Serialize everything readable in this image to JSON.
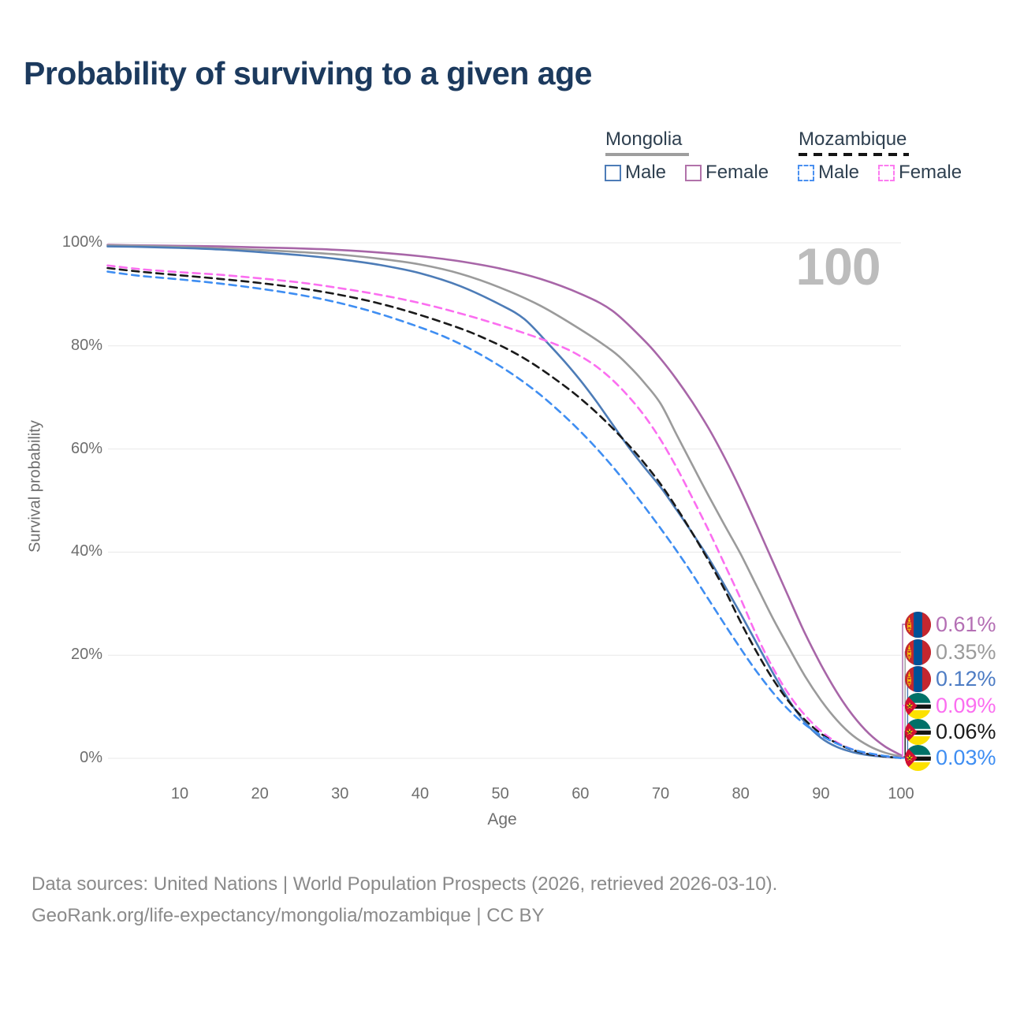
{
  "title": "Probability of surviving to a given age",
  "watermark": "100",
  "legend": {
    "mongolia": {
      "label": "Mongolia",
      "male": "Male",
      "female": "Female"
    },
    "mozambique": {
      "label": "Mozambique",
      "male": "Male",
      "female": "Female"
    }
  },
  "axes": {
    "y_label": "Survival probability",
    "x_label": "Age",
    "y_ticks": [
      "0%",
      "20%",
      "40%",
      "60%",
      "80%",
      "100%"
    ],
    "x_ticks": [
      10,
      20,
      30,
      40,
      50,
      60,
      70,
      80,
      90,
      100
    ]
  },
  "footer": {
    "line1": "Data sources: United Nations | World Population Prospects (2026, retrieved 2026-03-10).",
    "line2": "GeoRank.org/life-expectancy/mongolia/mozambique | CC BY"
  },
  "colors": {
    "title": "#1c3a5e",
    "grid": "#e8e8e8",
    "axis_text": "#6e6e6e",
    "mongolia_male": "#4d7cb7",
    "mongolia_female": "#a866a8",
    "mongolia_total": "#9b9b9b",
    "mozambique_male": "#3f8ef2",
    "mozambique_female": "#fb6ef0",
    "mozambique_total": "#1a1a1a"
  },
  "chart_data": {
    "type": "line",
    "title": "Probability of surviving to a given age",
    "xlabel": "Age",
    "ylabel": "Survival probability",
    "x_range": [
      1,
      100
    ],
    "y_range_pct": [
      0,
      100
    ],
    "grid": "horizontal",
    "series": [
      {
        "id": "mongolia-female",
        "name": "Mongolia Female",
        "country": "mongolia",
        "style": "solid",
        "color": "#a866a8",
        "end_label": "0.61%",
        "label_color": "#b46fb4",
        "points": [
          [
            1,
            99.6
          ],
          [
            5,
            99.5
          ],
          [
            10,
            99.4
          ],
          [
            15,
            99.3
          ],
          [
            20,
            99.1
          ],
          [
            25,
            98.9
          ],
          [
            30,
            98.6
          ],
          [
            35,
            98.1
          ],
          [
            40,
            97.4
          ],
          [
            45,
            96.4
          ],
          [
            50,
            95.0
          ],
          [
            55,
            93.0
          ],
          [
            60,
            90.1
          ],
          [
            64,
            86.8
          ],
          [
            68,
            81.0
          ],
          [
            70,
            77.5
          ],
          [
            72,
            73.5
          ],
          [
            74,
            69.0
          ],
          [
            76,
            64.0
          ],
          [
            78,
            58.3
          ],
          [
            80,
            52.0
          ],
          [
            82,
            45.2
          ],
          [
            84,
            38.2
          ],
          [
            86,
            31.2
          ],
          [
            88,
            24.3
          ],
          [
            90,
            18.2
          ],
          [
            92,
            12.8
          ],
          [
            94,
            8.3
          ],
          [
            96,
            4.8
          ],
          [
            98,
            2.3
          ],
          [
            100,
            0.61
          ]
        ]
      },
      {
        "id": "mongolia-total",
        "name": "Mongolia",
        "country": "mongolia",
        "style": "solid",
        "color": "#9b9b9b",
        "end_label": "0.35%",
        "label_color": "#9b9b9b",
        "points": [
          [
            1,
            99.5
          ],
          [
            5,
            99.4
          ],
          [
            10,
            99.2
          ],
          [
            15,
            98.9
          ],
          [
            20,
            98.6
          ],
          [
            25,
            98.2
          ],
          [
            30,
            97.7
          ],
          [
            35,
            96.9
          ],
          [
            40,
            95.8
          ],
          [
            45,
            94.0
          ],
          [
            50,
            91.3
          ],
          [
            55,
            87.8
          ],
          [
            60,
            83.2
          ],
          [
            64,
            79.0
          ],
          [
            66,
            76.2
          ],
          [
            68,
            72.8
          ],
          [
            70,
            68.8
          ],
          [
            72,
            62.8
          ],
          [
            74,
            56.8
          ],
          [
            76,
            50.9
          ],
          [
            78,
            45.2
          ],
          [
            80,
            39.6
          ],
          [
            82,
            33.4
          ],
          [
            84,
            27.2
          ],
          [
            86,
            21.5
          ],
          [
            88,
            16.0
          ],
          [
            90,
            11.3
          ],
          [
            92,
            7.4
          ],
          [
            94,
            4.4
          ],
          [
            96,
            2.4
          ],
          [
            98,
            1.1
          ],
          [
            100,
            0.35
          ]
        ]
      },
      {
        "id": "mongolia-male",
        "name": "Mongolia Male",
        "country": "mongolia",
        "style": "solid",
        "color": "#4d7cb7",
        "end_label": "0.12%",
        "label_color": "#4d7cc4",
        "points": [
          [
            1,
            99.3
          ],
          [
            5,
            99.2
          ],
          [
            10,
            99.0
          ],
          [
            15,
            98.7
          ],
          [
            20,
            98.2
          ],
          [
            25,
            97.6
          ],
          [
            30,
            96.8
          ],
          [
            35,
            95.7
          ],
          [
            40,
            94.1
          ],
          [
            45,
            91.6
          ],
          [
            50,
            88.0
          ],
          [
            53,
            85.2
          ],
          [
            56,
            80.4
          ],
          [
            58,
            77.0
          ],
          [
            60,
            73.3
          ],
          [
            62,
            69.2
          ],
          [
            64,
            64.8
          ],
          [
            66,
            60.4
          ],
          [
            68,
            56.4
          ],
          [
            70,
            52.6
          ],
          [
            72,
            48.2
          ],
          [
            74,
            43.6
          ],
          [
            76,
            38.8
          ],
          [
            78,
            33.5
          ],
          [
            80,
            28.0
          ],
          [
            82,
            22.3
          ],
          [
            84,
            16.6
          ],
          [
            86,
            11.3
          ],
          [
            88,
            7.0
          ],
          [
            90,
            4.0
          ],
          [
            92,
            2.2
          ],
          [
            94,
            1.2
          ],
          [
            96,
            0.6
          ],
          [
            98,
            0.3
          ],
          [
            100,
            0.12
          ]
        ]
      },
      {
        "id": "mozambique-female",
        "name": "Mozambique Female",
        "country": "mozambique",
        "style": "dashed",
        "color": "#fb6ef0",
        "end_label": "0.09%",
        "label_color": "#fb6ef0",
        "points": [
          [
            1,
            95.6
          ],
          [
            5,
            94.9
          ],
          [
            10,
            94.3
          ],
          [
            15,
            93.8
          ],
          [
            20,
            93.1
          ],
          [
            25,
            92.3
          ],
          [
            30,
            91.2
          ],
          [
            35,
            89.9
          ],
          [
            40,
            88.3
          ],
          [
            45,
            86.3
          ],
          [
            50,
            84.0
          ],
          [
            55,
            81.4
          ],
          [
            58,
            79.6
          ],
          [
            60,
            78.0
          ],
          [
            62,
            76.0
          ],
          [
            64,
            73.4
          ],
          [
            66,
            70.2
          ],
          [
            68,
            66.4
          ],
          [
            70,
            61.8
          ],
          [
            72,
            56.4
          ],
          [
            74,
            50.4
          ],
          [
            76,
            44.2
          ],
          [
            78,
            37.6
          ],
          [
            80,
            30.9
          ],
          [
            82,
            23.8
          ],
          [
            84,
            17.6
          ],
          [
            86,
            12.4
          ],
          [
            88,
            8.4
          ],
          [
            90,
            5.3
          ],
          [
            92,
            3.1
          ],
          [
            94,
            1.7
          ],
          [
            96,
            0.9
          ],
          [
            98,
            0.4
          ],
          [
            100,
            0.09
          ]
        ]
      },
      {
        "id": "mozambique-total",
        "name": "Mozambique",
        "country": "mozambique",
        "style": "dashed",
        "color": "#1a1a1a",
        "end_label": "0.06%",
        "label_color": "#1a1a1a",
        "points": [
          [
            1,
            95.1
          ],
          [
            5,
            94.4
          ],
          [
            10,
            93.7
          ],
          [
            15,
            93.0
          ],
          [
            20,
            92.2
          ],
          [
            25,
            91.2
          ],
          [
            30,
            89.9
          ],
          [
            35,
            88.2
          ],
          [
            40,
            86.0
          ],
          [
            45,
            83.4
          ],
          [
            48,
            81.5
          ],
          [
            51,
            79.3
          ],
          [
            54,
            76.6
          ],
          [
            57,
            73.4
          ],
          [
            60,
            69.8
          ],
          [
            63,
            65.6
          ],
          [
            66,
            60.8
          ],
          [
            68,
            57.2
          ],
          [
            70,
            53.2
          ],
          [
            72,
            48.6
          ],
          [
            74,
            43.6
          ],
          [
            76,
            38.3
          ],
          [
            78,
            32.7
          ],
          [
            80,
            26.4
          ],
          [
            82,
            20.6
          ],
          [
            84,
            15.4
          ],
          [
            86,
            11.0
          ],
          [
            88,
            7.5
          ],
          [
            90,
            4.8
          ],
          [
            92,
            2.9
          ],
          [
            94,
            1.6
          ],
          [
            96,
            0.8
          ],
          [
            98,
            0.35
          ],
          [
            100,
            0.06
          ]
        ]
      },
      {
        "id": "mozambique-male",
        "name": "Mozambique Male",
        "country": "mozambique",
        "style": "dashed",
        "color": "#3f8ef2",
        "end_label": "0.03%",
        "label_color": "#3f8ef2",
        "points": [
          [
            1,
            94.4
          ],
          [
            5,
            93.6
          ],
          [
            10,
            92.9
          ],
          [
            15,
            92.1
          ],
          [
            20,
            91.1
          ],
          [
            25,
            89.9
          ],
          [
            30,
            88.3
          ],
          [
            35,
            86.2
          ],
          [
            40,
            83.6
          ],
          [
            43,
            81.8
          ],
          [
            46,
            79.6
          ],
          [
            49,
            77.0
          ],
          [
            52,
            74.0
          ],
          [
            55,
            70.5
          ],
          [
            58,
            66.4
          ],
          [
            61,
            61.8
          ],
          [
            64,
            56.6
          ],
          [
            67,
            50.8
          ],
          [
            70,
            44.6
          ],
          [
            73,
            38.0
          ],
          [
            76,
            30.8
          ],
          [
            79,
            23.6
          ],
          [
            82,
            16.8
          ],
          [
            85,
            11.0
          ],
          [
            88,
            6.6
          ],
          [
            91,
            3.6
          ],
          [
            94,
            1.7
          ],
          [
            97,
            0.7
          ],
          [
            100,
            0.03
          ]
        ]
      }
    ],
    "end_label_rows_top_to_bottom": [
      "0.61%",
      "0.35%",
      "0.12%",
      "0.09%",
      "0.06%",
      "0.03%"
    ]
  }
}
